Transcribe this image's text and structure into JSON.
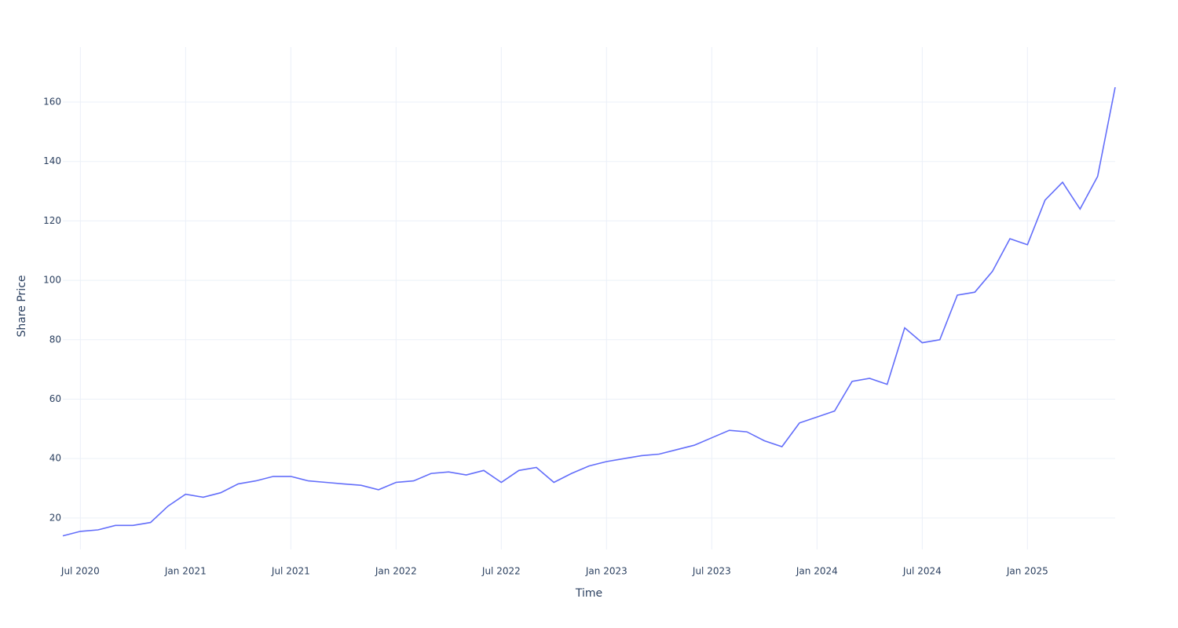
{
  "chart_data": {
    "type": "line",
    "x_label": "Time",
    "y_label": "Share Price",
    "x": [
      "2020-06",
      "2020-07",
      "2020-08",
      "2020-09",
      "2020-10",
      "2020-11",
      "2020-12",
      "2021-01",
      "2021-02",
      "2021-03",
      "2021-04",
      "2021-05",
      "2021-06",
      "2021-07",
      "2021-08",
      "2021-09",
      "2021-10",
      "2021-11",
      "2021-12",
      "2022-01",
      "2022-02",
      "2022-03",
      "2022-04",
      "2022-05",
      "2022-06",
      "2022-07",
      "2022-08",
      "2022-09",
      "2022-10",
      "2022-11",
      "2022-12",
      "2023-01",
      "2023-02",
      "2023-03",
      "2023-04",
      "2023-05",
      "2023-06",
      "2023-07",
      "2023-08",
      "2023-09",
      "2023-10",
      "2023-11",
      "2023-12",
      "2024-01",
      "2024-02",
      "2024-03",
      "2024-04",
      "2024-05",
      "2024-06",
      "2024-07",
      "2024-08",
      "2024-09",
      "2024-10",
      "2024-11",
      "2024-12",
      "2025-01",
      "2025-02",
      "2025-03",
      "2025-04",
      "2025-05",
      "2025-06"
    ],
    "series": [
      {
        "name": "Share Price",
        "color": "#636efa",
        "values": [
          14,
          15.5,
          16,
          17.5,
          17.5,
          18.5,
          24,
          28,
          27,
          28.5,
          31.5,
          32.5,
          34,
          34,
          32.5,
          32,
          31.5,
          31,
          29.5,
          32,
          32.5,
          35,
          35.5,
          34.5,
          36,
          32,
          36,
          37,
          32,
          35,
          37.5,
          39,
          40,
          41,
          41.5,
          43,
          44.5,
          47,
          49.5,
          49,
          46,
          44,
          52,
          54,
          56,
          66,
          67,
          65,
          84,
          79,
          80,
          95,
          96,
          103,
          114,
          112,
          127,
          133,
          124,
          135,
          165
        ]
      }
    ],
    "xlim": [
      "2020-06",
      "2025-06"
    ],
    "xticks": [
      {
        "value": "2020-07",
        "label": "Jul 2020"
      },
      {
        "value": "2021-01",
        "label": "Jan 2021"
      },
      {
        "value": "2021-07",
        "label": "Jul 2021"
      },
      {
        "value": "2022-01",
        "label": "Jan 2022"
      },
      {
        "value": "2022-07",
        "label": "Jul 2022"
      },
      {
        "value": "2023-01",
        "label": "Jan 2023"
      },
      {
        "value": "2023-07",
        "label": "Jul 2023"
      },
      {
        "value": "2024-01",
        "label": "Jan 2024"
      },
      {
        "value": "2024-07",
        "label": "Jul 2024"
      },
      {
        "value": "2025-01",
        "label": "Jan 2025"
      }
    ],
    "ylim": [
      9.4,
      178.5
    ],
    "yticks": [
      20,
      40,
      60,
      80,
      100,
      120,
      140,
      160
    ],
    "grid": true
  }
}
